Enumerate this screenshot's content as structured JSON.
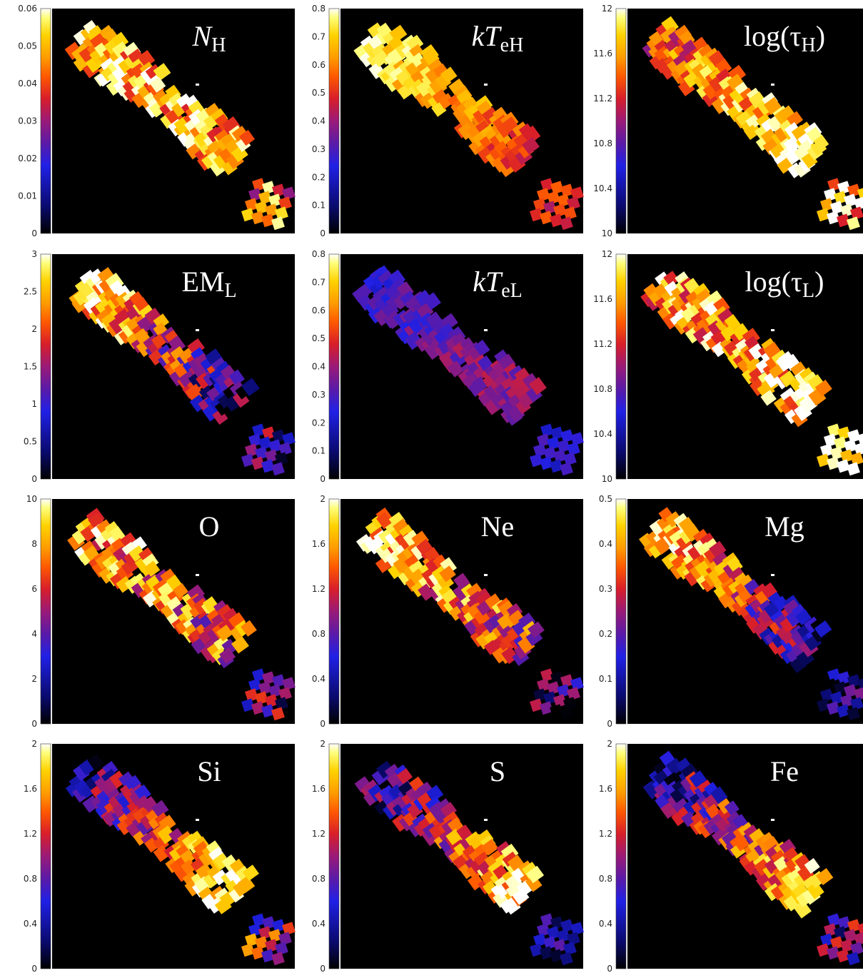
{
  "palette": [
    "#000000",
    "#0a0a6e",
    "#2020e6",
    "#5a1aa8",
    "#9a1a78",
    "#d81e2a",
    "#ff5a00",
    "#ff9a00",
    "#ffd200",
    "#ffff7a",
    "#ffffff"
  ],
  "chart_data": [
    {
      "type": "heatmap",
      "label": "N",
      "label_sub": "H",
      "label_italic": true,
      "ticks": [
        "0",
        "0.01",
        "0.02",
        "0.03",
        "0.04",
        "0.05",
        "0.06"
      ],
      "range": [
        0,
        0.06
      ],
      "pattern": {
        "grad": [
          0.82,
          0.72
        ],
        "noise": 0.28,
        "tail": [
          0.65,
          0.3
        ],
        "seed": 11
      }
    },
    {
      "type": "heatmap",
      "label": "kT",
      "label_sub": "eH",
      "label_italic": true,
      "ticks": [
        "0",
        "0.1",
        "0.2",
        "0.3",
        "0.4",
        "0.5",
        "0.6",
        "0.7",
        "0.8"
      ],
      "range": [
        0,
        0.8
      ],
      "pattern": {
        "grad": [
          0.9,
          0.55
        ],
        "noise": 0.12,
        "tail": [
          0.52,
          0.1
        ],
        "seed": 23
      }
    },
    {
      "type": "heatmap",
      "label": "log(τ",
      "label_sub": "H",
      "label_suffix": ")",
      "label_italic": false,
      "ticks": [
        "10",
        "10.4",
        "10.8",
        "11.2",
        "11.6",
        "12"
      ],
      "range": [
        10,
        12
      ],
      "pattern": {
        "grad": [
          0.58,
          0.9
        ],
        "noise": 0.22,
        "tail": [
          0.85,
          0.35
        ],
        "seed": 37
      }
    },
    {
      "type": "heatmap",
      "label": "EM",
      "label_sub": "L",
      "label_italic": false,
      "ticks": [
        "0",
        "0.5",
        "1",
        "1.5",
        "2",
        "2.5",
        "3"
      ],
      "range": [
        0,
        3
      ],
      "pattern": {
        "grad": [
          0.9,
          0.18
        ],
        "noise": 0.28,
        "tail": [
          0.25,
          0.3
        ],
        "seed": 41
      }
    },
    {
      "type": "heatmap",
      "label": "kT",
      "label_sub": "eL",
      "label_italic": true,
      "ticks": [
        "0",
        "0.1",
        "0.2",
        "0.3",
        "0.4",
        "0.5",
        "0.6",
        "0.7",
        "0.8"
      ],
      "range": [
        0,
        0.8
      ],
      "pattern": {
        "grad": [
          0.26,
          0.4
        ],
        "noise": 0.1,
        "tail": [
          0.22,
          0.06
        ],
        "seed": 53
      }
    },
    {
      "type": "heatmap",
      "label": "log(τ",
      "label_sub": "L",
      "label_suffix": ")",
      "label_italic": false,
      "ticks": [
        "10",
        "10.4",
        "10.8",
        "11.2",
        "11.6",
        "12"
      ],
      "range": [
        10,
        12
      ],
      "pattern": {
        "grad": [
          0.72,
          0.82
        ],
        "noise": 0.3,
        "tail": [
          0.92,
          0.2
        ],
        "seed": 67
      }
    },
    {
      "type": "heatmap",
      "label": "O",
      "label_sub": "",
      "label_italic": false,
      "ticks": [
        "0",
        "2",
        "4",
        "6",
        "8",
        "10"
      ],
      "range": [
        0,
        10
      ],
      "pattern": {
        "grad": [
          0.78,
          0.55
        ],
        "noise": 0.32,
        "tail": [
          0.3,
          0.25
        ],
        "seed": 71
      }
    },
    {
      "type": "heatmap",
      "label": "Ne",
      "label_sub": "",
      "label_italic": false,
      "ticks": [
        "0",
        "0.4",
        "0.8",
        "1.2",
        "1.6",
        "2"
      ],
      "range": [
        0,
        2
      ],
      "pattern": {
        "grad": [
          0.85,
          0.5
        ],
        "noise": 0.28,
        "tail": [
          0.22,
          0.25
        ],
        "seed": 83
      }
    },
    {
      "type": "heatmap",
      "label": "Mg",
      "label_sub": "",
      "label_italic": false,
      "ticks": [
        "0",
        "0.1",
        "0.2",
        "0.3",
        "0.4",
        "0.5"
      ],
      "range": [
        0,
        0.5
      ],
      "pattern": {
        "grad": [
          0.85,
          0.2
        ],
        "noise": 0.25,
        "tail": [
          0.2,
          0.2
        ],
        "seed": 97
      }
    },
    {
      "type": "heatmap",
      "label": "Si",
      "label_sub": "",
      "label_italic": false,
      "ticks": [
        "0",
        "0.4",
        "0.8",
        "1.2",
        "1.6",
        "2"
      ],
      "range": [
        0,
        2
      ],
      "pattern": {
        "grad": [
          0.2,
          0.92
        ],
        "noise": 0.22,
        "tail": [
          0.45,
          0.3
        ],
        "seed": 101
      }
    },
    {
      "type": "heatmap",
      "label": "S",
      "label_sub": "",
      "label_italic": false,
      "ticks": [
        "0",
        "0.4",
        "0.8",
        "1.2",
        "1.6",
        "2"
      ],
      "range": [
        0,
        2
      ],
      "pattern": {
        "grad": [
          0.18,
          0.85
        ],
        "noise": 0.25,
        "tail": [
          0.18,
          0.15
        ],
        "seed": 113
      }
    },
    {
      "type": "heatmap",
      "label": "Fe",
      "label_sub": "",
      "label_italic": false,
      "ticks": [
        "0",
        "0.4",
        "0.8",
        "1.2",
        "1.6",
        "2"
      ],
      "range": [
        0,
        2
      ],
      "pattern": {
        "grad": [
          0.2,
          0.8
        ],
        "noise": 0.25,
        "tail": [
          0.3,
          0.25
        ],
        "seed": 127
      }
    }
  ]
}
